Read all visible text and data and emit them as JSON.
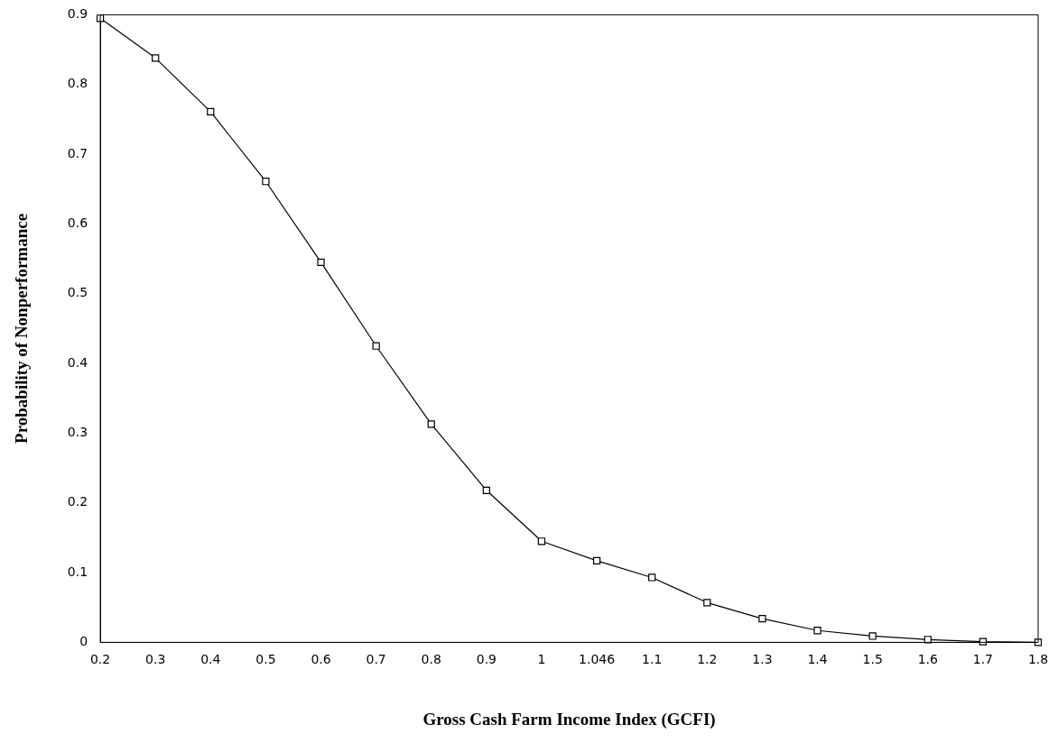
{
  "chart_data": {
    "type": "line",
    "xlabel": "Gross Cash Farm Income Index (GCFI)",
    "ylabel": "Probability of Nonperformance",
    "categories": [
      "0.2",
      "0.3",
      "0.4",
      "0.5",
      "0.6",
      "0.7",
      "0.8",
      "0.9",
      "1",
      "1.046",
      "1.1",
      "1.2",
      "1.3",
      "1.4",
      "1.5",
      "1.6",
      "1.7",
      "1.8"
    ],
    "series": [
      {
        "color": "#000000",
        "values": [
          0.895,
          0.838,
          0.761,
          0.661,
          0.545,
          0.425,
          0.313,
          0.218,
          0.145,
          0.117,
          0.093,
          0.057,
          0.034,
          0.017,
          0.009,
          0.004,
          0.001,
          0
        ]
      }
    ],
    "ylim": [
      0,
      0.9
    ],
    "yticks": [
      0,
      0.1,
      0.2,
      0.3,
      0.4,
      0.5,
      0.6,
      0.7,
      0.8,
      0.9
    ],
    "grid": false,
    "legend": false,
    "marker": "square",
    "line_style": "solid"
  }
}
